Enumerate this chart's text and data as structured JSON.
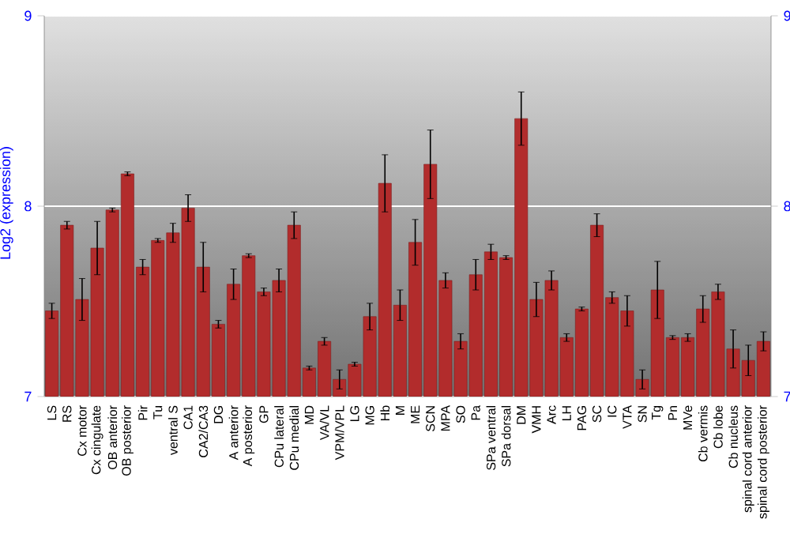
{
  "chart_data": {
    "type": "bar",
    "ylabel": "Log2 (expression)",
    "categories": [
      "LS",
      "RS",
      "Cx motor",
      "Cx cingulate",
      "OB anterior",
      "OB posterior",
      "Pir",
      "Tu",
      "ventral S",
      "CA1",
      "CA2/CA3",
      "DG",
      "A anterior",
      "A posterior",
      "GP",
      "CPu lateral",
      "CPu medial",
      "MD",
      "VA/VL",
      "VPM/VPL",
      "LG",
      "MG",
      "Hb",
      "M",
      "ME",
      "SCN",
      "MPA",
      "SO",
      "Pa",
      "SPa ventral",
      "SPa dorsal",
      "DM",
      "VMH",
      "Arc",
      "LH",
      "PAG",
      "SC",
      "IC",
      "VTA",
      "SN",
      "Tg",
      "Pn",
      "MVe",
      "Cb vermis",
      "Cb lobe",
      "Cb nucleus",
      "spinal cord anterior",
      "spinal cord posterior"
    ],
    "values": [
      7.45,
      7.9,
      7.51,
      7.78,
      7.98,
      8.17,
      7.68,
      7.82,
      7.86,
      7.99,
      7.68,
      7.38,
      7.59,
      7.74,
      7.55,
      7.61,
      7.9,
      7.15,
      7.29,
      7.09,
      7.17,
      7.42,
      8.12,
      7.48,
      7.81,
      8.22,
      7.61,
      7.29,
      7.64,
      7.76,
      7.73,
      8.46,
      7.51,
      7.61,
      7.31,
      7.46,
      7.9,
      7.52,
      7.45,
      7.09,
      7.56,
      7.31,
      7.31,
      7.46,
      7.55,
      7.25,
      7.19,
      7.29
    ],
    "errors": [
      0.04,
      0.02,
      0.11,
      0.14,
      0.01,
      0.01,
      0.04,
      0.01,
      0.05,
      0.07,
      0.13,
      0.02,
      0.08,
      0.01,
      0.02,
      0.06,
      0.07,
      0.01,
      0.02,
      0.05,
      0.01,
      0.07,
      0.15,
      0.08,
      0.12,
      0.18,
      0.04,
      0.04,
      0.08,
      0.04,
      0.01,
      0.14,
      0.09,
      0.05,
      0.02,
      0.01,
      0.06,
      0.03,
      0.08,
      0.05,
      0.15,
      0.01,
      0.02,
      0.07,
      0.04,
      0.1,
      0.08,
      0.05
    ],
    "color": "#b22c2c",
    "ylim": [
      7,
      9
    ],
    "yticks": [
      7,
      8,
      9
    ],
    "y2lim": [
      7,
      9
    ],
    "y2ticks": [
      7,
      8,
      9
    ],
    "grid": "y"
  }
}
